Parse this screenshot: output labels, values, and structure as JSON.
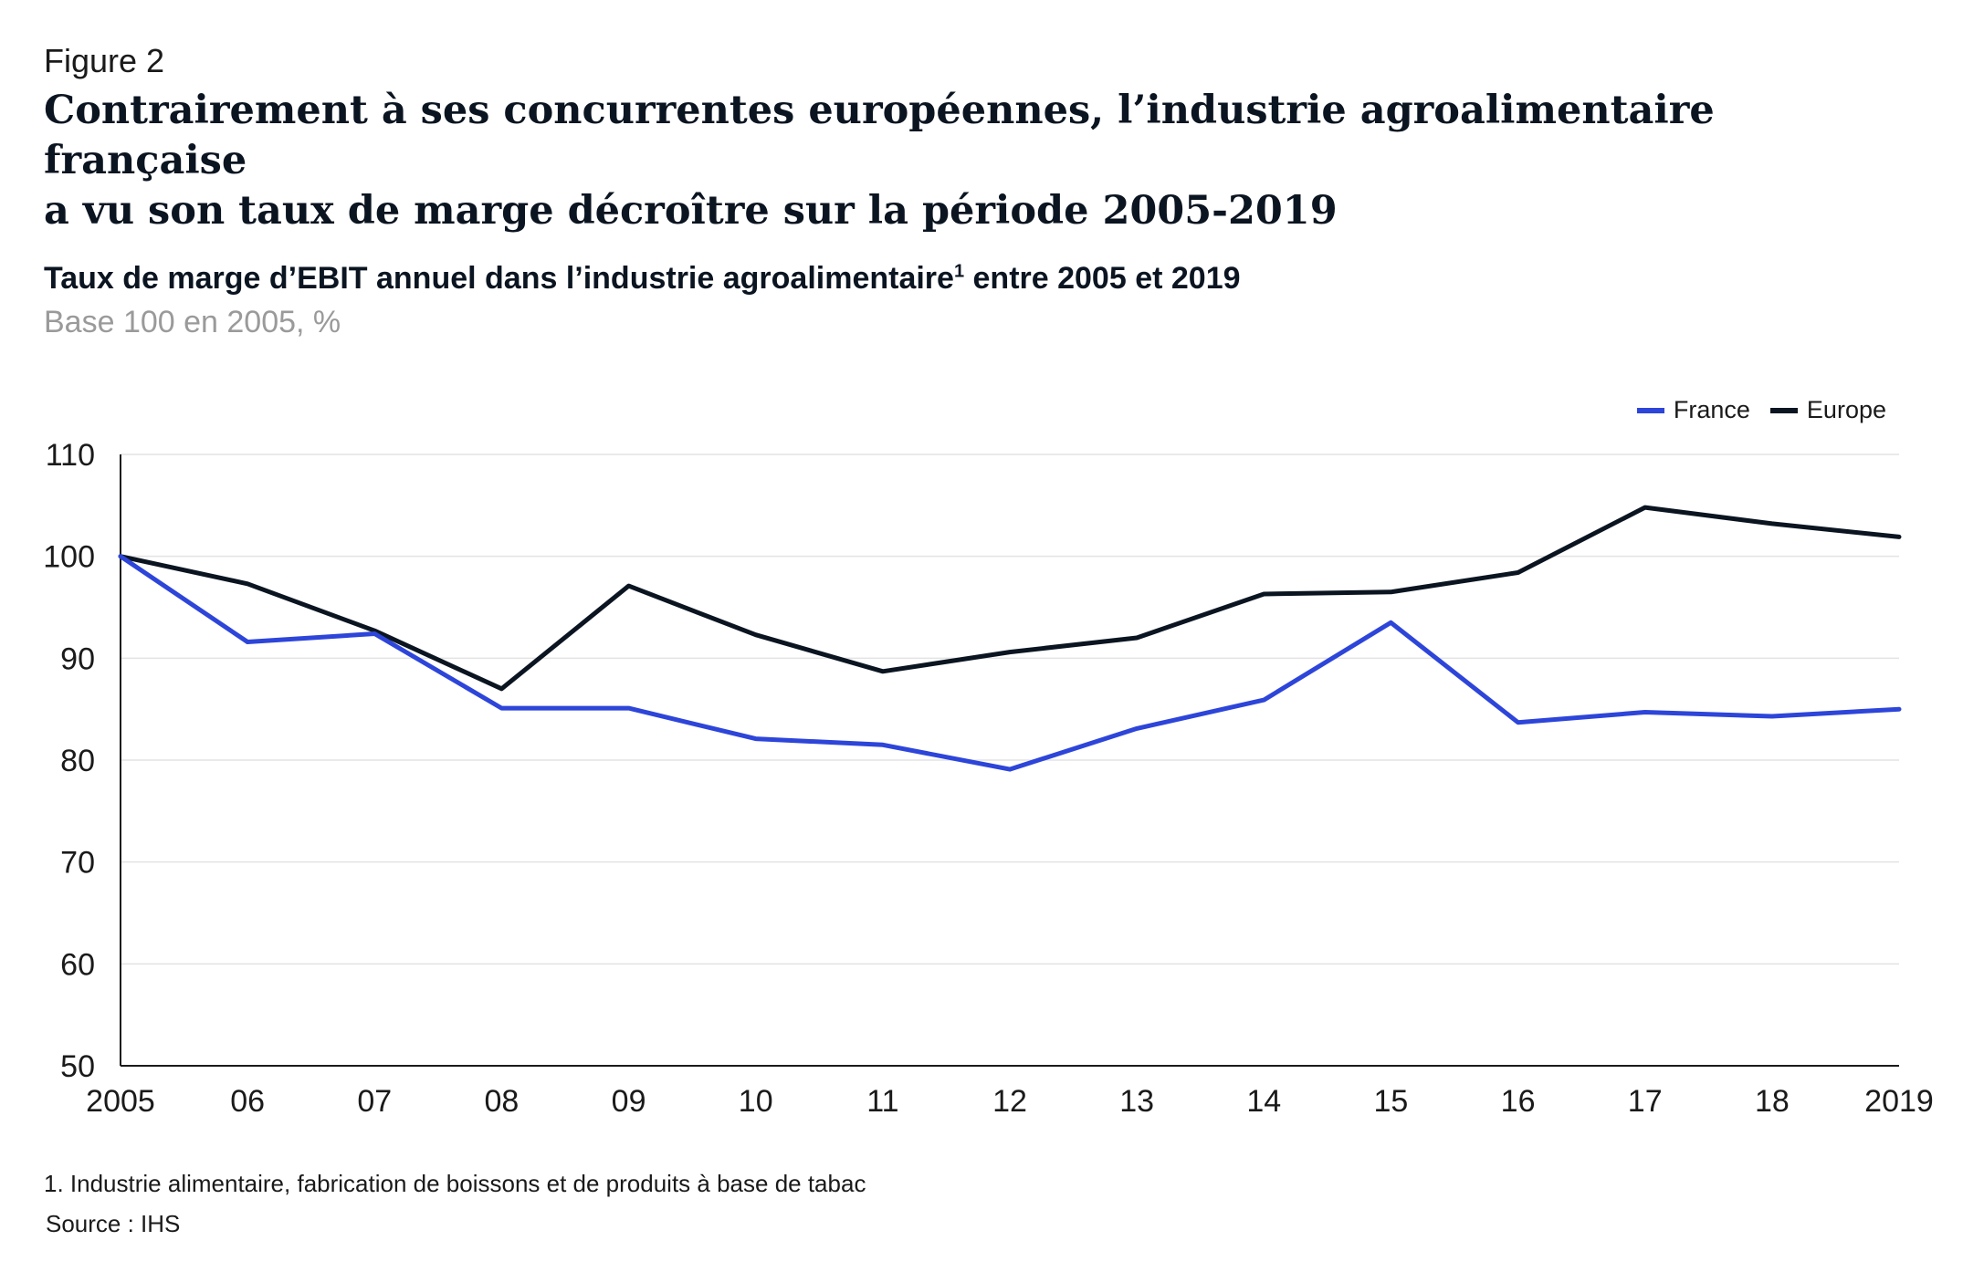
{
  "figure_label": "Figure 2",
  "headline_line1": "Contrairement à ses concurrentes européennes, l’industrie agroalimentaire française",
  "headline_line2": "a vu son taux de marge décroître sur la période 2005-2019",
  "footnote": "1.  Industrie alimentaire, fabrication de boissons et de produits à base de tabac",
  "source": "Source : IHS",
  "chart_data": {
    "type": "line",
    "title": "Taux de marge d’EBIT annuel dans l’industrie agroalimentaire",
    "title_superscript": "1",
    "title_suffix": " entre 2005 et 2019",
    "subtitle": "Base 100 en 2005, %",
    "x": [
      "2005",
      "06",
      "07",
      "08",
      "09",
      "10",
      "11",
      "12",
      "13",
      "14",
      "15",
      "16",
      "17",
      "18",
      "2019"
    ],
    "ylim": [
      50,
      110
    ],
    "yticks": [
      50,
      60,
      70,
      80,
      90,
      100,
      110
    ],
    "grid": true,
    "legend_position": "top-right",
    "series": [
      {
        "name": "France",
        "color": "#2d45d9",
        "values": [
          100,
          91.6,
          92.4,
          85.1,
          85.1,
          82.1,
          81.5,
          79.1,
          83.1,
          85.9,
          93.5,
          83.7,
          84.7,
          84.3,
          85.0
        ]
      },
      {
        "name": "Europe",
        "color": "#0b1521",
        "values": [
          100,
          97.3,
          92.7,
          87.0,
          97.1,
          92.3,
          88.7,
          90.6,
          92.0,
          96.3,
          96.5,
          98.4,
          104.8,
          103.2,
          101.9
        ]
      }
    ]
  }
}
